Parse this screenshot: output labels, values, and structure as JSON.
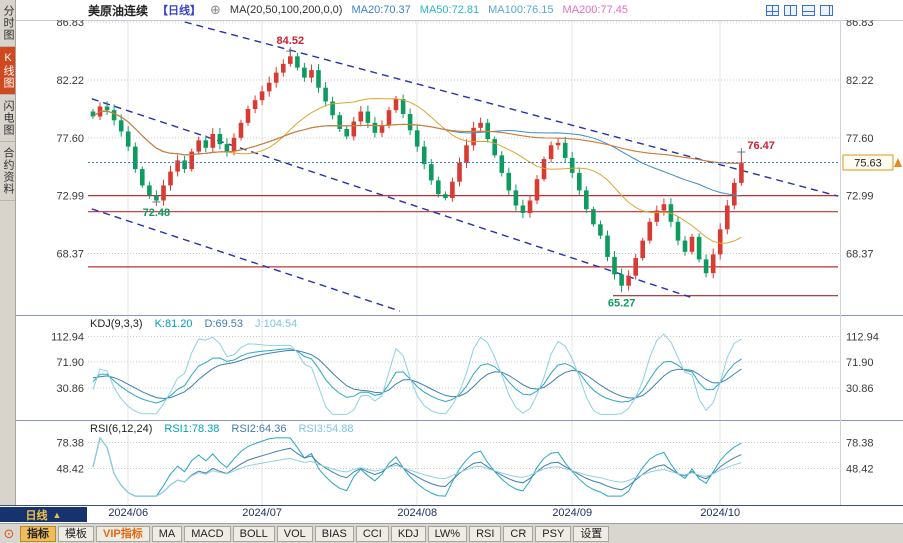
{
  "sidebar": {
    "tabs": [
      {
        "id": "time",
        "label": "分时图",
        "active": false
      },
      {
        "id": "kline",
        "label": "K线图",
        "active": true
      },
      {
        "id": "lightning",
        "label": "闪电图",
        "active": false
      },
      {
        "id": "contract",
        "label": "合约资料",
        "active": false
      }
    ]
  },
  "header": {
    "symbol": "美原油连续",
    "period": "【日线】",
    "zoom_icon": "⊕",
    "ma_label": "MA(20,50,100,200,0,0)",
    "ma_values": [
      {
        "label": "MA20:70.37",
        "color": "#3a7fd5"
      },
      {
        "label": "MA50:72.81",
        "color": "#2ab5c8"
      },
      {
        "label": "MA100:76.15",
        "color": "#55a8d8"
      },
      {
        "label": "MA200:77.45",
        "color": "#e070c0"
      }
    ]
  },
  "window_icons": [
    {
      "name": "layout-grid-icon",
      "style": "g"
    },
    {
      "name": "layout-vertical-split-icon",
      "style": "v"
    },
    {
      "name": "layout-horizontal-split-icon",
      "style": "h"
    },
    {
      "name": "layout-right-split-icon",
      "style": "r"
    }
  ],
  "chart_data": {
    "type": "candlestick",
    "title": "美原油连续 日线",
    "x_axis_labels": [
      "2024/06",
      "2024/07",
      "2024/08",
      "2024/09",
      "2024/10"
    ],
    "main": {
      "closes": [
        79.3,
        80.1,
        79.8,
        79.0,
        78.1,
        76.9,
        75.1,
        73.8,
        73.0,
        72.6,
        73.8,
        74.9,
        75.8,
        75.1,
        76.5,
        77.4,
        76.8,
        77.9,
        77.1,
        76.5,
        77.6,
        78.8,
        79.9,
        80.6,
        81.3,
        82.0,
        82.8,
        83.5,
        84.1,
        83.2,
        82.4,
        83.0,
        81.6,
        80.5,
        79.4,
        78.3,
        77.7,
        78.9,
        79.7,
        78.8,
        78.0,
        78.6,
        79.8,
        80.7,
        79.5,
        78.2,
        76.9,
        75.5,
        74.2,
        73.1,
        72.8,
        74.1,
        75.6,
        77.0,
        78.4,
        78.8,
        77.5,
        76.2,
        74.8,
        73.4,
        72.2,
        71.6,
        72.6,
        74.3,
        75.9,
        77.0,
        77.2,
        76.0,
        74.8,
        73.4,
        71.9,
        70.7,
        69.8,
        68.1,
        66.7,
        65.8,
        66.6,
        68.0,
        69.4,
        70.9,
        71.8,
        72.3,
        70.9,
        69.4,
        68.5,
        69.7,
        67.9,
        66.8,
        68.3,
        70.3,
        72.2,
        74.0,
        75.63
      ],
      "overrides": {
        "9": {
          "l": 72.48
        },
        "28": {
          "h": 84.52
        },
        "75": {
          "l": 65.27
        },
        "92": {
          "h": 76.47
        }
      },
      "months": [
        {
          "label": "2024/06",
          "i": 5
        },
        {
          "label": "2024/07",
          "i": 24
        },
        {
          "label": "2024/08",
          "i": 46
        },
        {
          "label": "2024/09",
          "i": 68
        },
        {
          "label": "2024/10",
          "i": 89
        }
      ],
      "right_gap": 12,
      "price_top": 87.0,
      "price_bottom": 63.7,
      "y_ticks": [
        86.83,
        82.22,
        77.6,
        72.99,
        68.37
      ],
      "current_price": 75.63,
      "up_color": "#d93a31",
      "down_color": "#0e9b60",
      "ma_windows": [
        20,
        50,
        100,
        200
      ],
      "ma_line_colors": [
        "#d9a62e",
        "#3f8fc4",
        "#58b0b8",
        "#e0782a"
      ],
      "annotations": [
        {
          "text": "84.52",
          "i": 28,
          "price": 84.52,
          "dy": -7,
          "anchor": "middle",
          "color": "#cc2233",
          "cross": true
        },
        {
          "text": "72.48",
          "i": 9,
          "price": 72.48,
          "dy": 14,
          "anchor": "middle",
          "color": "#0f9b60",
          "cross": true
        },
        {
          "text": "65.27",
          "i": 75,
          "price": 65.27,
          "dy": 14,
          "anchor": "middle",
          "color": "#0f9b60",
          "cross": false
        },
        {
          "text": "76.47",
          "i": 92,
          "price": 76.47,
          "dy": -3,
          "dx": 6,
          "anchor": "start",
          "color": "#cc2233",
          "cross": true
        }
      ],
      "hlines": [
        {
          "price": 72.99,
          "x1": 0,
          "x2": 1,
          "color": "#c03030"
        },
        {
          "price": 71.7,
          "x1": 0,
          "x2": 1,
          "color": "#c03030"
        },
        {
          "price": 67.3,
          "x1": 0,
          "x2": 1,
          "color": "#c03030"
        },
        {
          "price": 65.0,
          "x1": 0.7,
          "x2": 1,
          "color": "#a02828"
        }
      ],
      "trendlines": [
        {
          "x1": 0.129,
          "y1": 0.007,
          "x2": 1.0,
          "y2": 0.603
        },
        {
          "x1": 0.005,
          "y1": 0.27,
          "x2": 0.803,
          "y2": 0.949
        },
        {
          "x1": 0.005,
          "y1": 0.647,
          "x2": 0.416,
          "y2": 0.997
        }
      ]
    },
    "kdj": {
      "title": "KDJ(9,3,3)",
      "params": [
        9,
        3,
        3
      ],
      "values": [
        {
          "id": "k",
          "label": "K:81.20",
          "color": "#00a2b3"
        },
        {
          "id": "d",
          "label": "D:69.53",
          "color": "#3f7fae"
        },
        {
          "id": "j",
          "label": "J:104.54",
          "color": "#7cc4e8"
        }
      ],
      "line_colors": [
        "#2aa7c0",
        "#3f7fae",
        "#8fd0e0"
      ],
      "y_ticks": [
        112.94,
        71.9,
        30.86
      ],
      "range": [
        -12,
        120
      ]
    },
    "rsi": {
      "title": "RSI(6,12,24)",
      "periods": [
        6,
        12,
        24
      ],
      "values": [
        {
          "id": "rsi1",
          "label": "RSI1:78.38",
          "color": "#00a2b3"
        },
        {
          "id": "rsi2",
          "label": "RSI2:64.36",
          "color": "#3f7fae"
        },
        {
          "id": "rsi3",
          "label": "RSI3:54.88",
          "color": "#7cc4e8"
        }
      ],
      "line_colors": [
        "#2aa7c0",
        "#3f7fae",
        "#8fd0e0"
      ],
      "y_ticks": [
        78.38,
        48.42
      ],
      "range": [
        15,
        85
      ]
    }
  },
  "bottom": {
    "period_label": "日线",
    "period_arrow": "▲",
    "tool_icon": "⊙",
    "toolbar": [
      {
        "id": "indicator",
        "label": "指标",
        "style": "active"
      },
      {
        "id": "template",
        "label": "模板"
      },
      {
        "id": "vip-indicator",
        "label": "VIP指标",
        "style": "vip"
      },
      {
        "id": "ma",
        "label": "MA"
      },
      {
        "id": "macd",
        "label": "MACD"
      },
      {
        "id": "boll",
        "label": "BOLL"
      },
      {
        "id": "vol",
        "label": "VOL"
      },
      {
        "id": "bias",
        "label": "BIAS"
      },
      {
        "id": "cci",
        "label": "CCI"
      },
      {
        "id": "kdj",
        "label": "KDJ"
      },
      {
        "id": "lw",
        "label": "LW%"
      },
      {
        "id": "rsi",
        "label": "RSI"
      },
      {
        "id": "cr",
        "label": "CR"
      },
      {
        "id": "psy",
        "label": "PSY"
      },
      {
        "id": "settings",
        "label": "设置"
      }
    ]
  }
}
